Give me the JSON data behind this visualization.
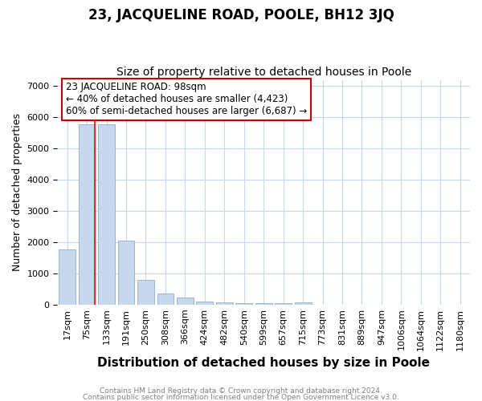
{
  "title": "23, JACQUELINE ROAD, POOLE, BH12 3JQ",
  "subtitle": "Size of property relative to detached houses in Poole",
  "xlabel": "Distribution of detached houses by size in Poole",
  "ylabel": "Number of detached properties",
  "bar_labels": [
    "17sqm",
    "75sqm",
    "133sqm",
    "191sqm",
    "250sqm",
    "308sqm",
    "366sqm",
    "424sqm",
    "482sqm",
    "540sqm",
    "599sqm",
    "657sqm",
    "715sqm",
    "773sqm",
    "831sqm",
    "889sqm",
    "947sqm",
    "1006sqm",
    "1064sqm",
    "1122sqm",
    "1180sqm"
  ],
  "bar_values": [
    1780,
    5780,
    5780,
    2060,
    800,
    360,
    230,
    100,
    75,
    50,
    40,
    50,
    80,
    0,
    0,
    0,
    0,
    0,
    0,
    0,
    0
  ],
  "bar_color": "#c8d8ec",
  "bar_edge_color": "#90aece",
  "red_line_x": 1.42,
  "annotation_line1": "23 JACQUELINE ROAD: 98sqm",
  "annotation_line2": "← 40% of detached houses are smaller (4,423)",
  "annotation_line3": "60% of semi-detached houses are larger (6,687) →",
  "annotation_box_color": "#ffffff",
  "annotation_box_edge_color": "#cc0000",
  "ylim": [
    0,
    7200
  ],
  "yticks": [
    0,
    1000,
    2000,
    3000,
    4000,
    5000,
    6000,
    7000
  ],
  "footer1": "Contains HM Land Registry data © Crown copyright and database right 2024.",
  "footer2": "Contains public sector information licensed under the Open Government Licence v3.0.",
  "bg_color": "#ffffff",
  "grid_color": "#c8d8ec",
  "title_fontsize": 12,
  "subtitle_fontsize": 10,
  "ylabel_fontsize": 9,
  "xlabel_fontsize": 11,
  "tick_fontsize": 8,
  "footer_fontsize": 6.5
}
